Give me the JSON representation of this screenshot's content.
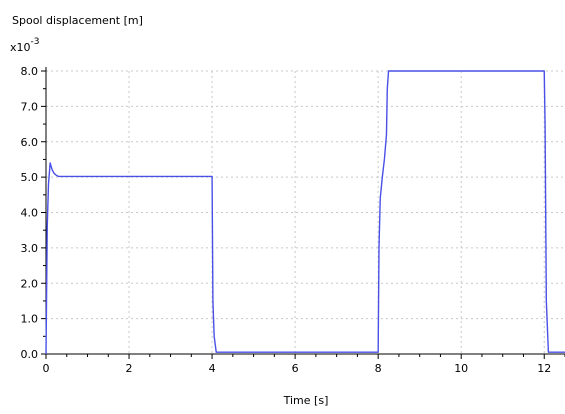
{
  "chart_data": {
    "type": "line",
    "title": "Spool displacement [m]",
    "xlabel": "Time [s]",
    "ylabel": "",
    "y_multiplier_base": "x10",
    "y_multiplier_exp": "-3",
    "xlim": [
      0,
      12.5
    ],
    "ylim": [
      0,
      8.0
    ],
    "x_ticks": [
      0,
      2,
      4,
      6,
      8,
      10,
      12
    ],
    "y_ticks": [
      0.0,
      1.0,
      2.0,
      3.0,
      4.0,
      5.0,
      6.0,
      7.0,
      8.0
    ],
    "y_tick_labels": [
      "0.0",
      "1.0",
      "2.0",
      "3.0",
      "4.0",
      "5.0",
      "6.0",
      "7.0",
      "8.0"
    ],
    "grid": true,
    "series_color": "#4a50e6",
    "series": [
      {
        "x": [
          0,
          0.03,
          0.06,
          0.1,
          0.15,
          0.2,
          0.25,
          0.3,
          0.5,
          1.0,
          2.0,
          3.0,
          4.0,
          4.02,
          4.05,
          4.1,
          4.2,
          5.0,
          6.0,
          7.0,
          8.0,
          8.02,
          8.05,
          8.1,
          8.15,
          8.2,
          8.22,
          8.25,
          9.0,
          10.0,
          11.0,
          12.0,
          12.02,
          12.05,
          12.1,
          12.5
        ],
        "y": [
          0.0,
          3.6,
          4.8,
          5.4,
          5.2,
          5.1,
          5.05,
          5.02,
          5.02,
          5.02,
          5.02,
          5.02,
          5.02,
          1.5,
          0.5,
          0.05,
          0.05,
          0.05,
          0.05,
          0.05,
          0.05,
          3.0,
          4.4,
          5.0,
          5.5,
          6.2,
          7.5,
          8.0,
          8.0,
          8.0,
          8.0,
          8.0,
          6.5,
          1.5,
          0.05,
          0.05
        ]
      }
    ]
  }
}
